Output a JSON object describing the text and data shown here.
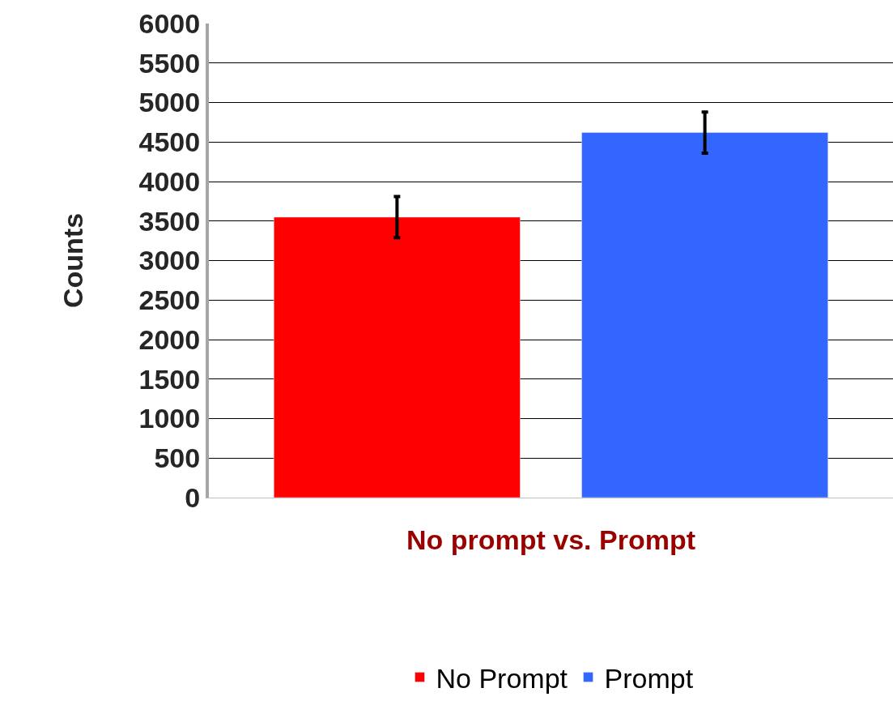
{
  "chart_data": {
    "type": "bar",
    "xlabel": "No prompt vs. Prompt",
    "ylabel": "Counts",
    "categories": [
      null
    ],
    "series": [
      {
        "name": "No Prompt",
        "color": "#ff0000",
        "values": [
          3550
        ],
        "errors": [
          260
        ]
      },
      {
        "name": "Prompt",
        "color": "#3366ff",
        "values": [
          4620
        ],
        "errors": [
          260
        ]
      }
    ],
    "ylim": [
      0,
      6000
    ],
    "yticks": [
      0,
      500,
      1000,
      1500,
      2000,
      2500,
      3000,
      3500,
      4000,
      4500,
      5000,
      5500,
      6000
    ],
    "grid": "y",
    "legend": "bottom",
    "tick_labels": "y"
  }
}
